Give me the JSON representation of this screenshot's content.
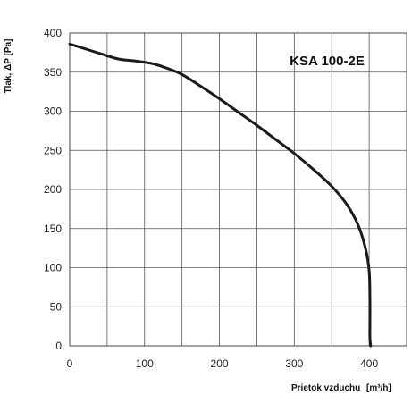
{
  "chart_data": {
    "type": "line",
    "title": "KSA 100-2E",
    "xlabel": "Prietok vzduchu",
    "xunit": "m³/h",
    "ylabel": "Tlak, ΔP [Pa]",
    "xlim": [
      0,
      450
    ],
    "ylim": [
      0,
      400
    ],
    "xticks": [
      0,
      100,
      200,
      300,
      400
    ],
    "yticks": [
      0,
      50,
      100,
      150,
      200,
      250,
      300,
      350,
      400
    ],
    "grid": true,
    "series": [
      {
        "x": [
          0,
          20,
          40,
          60,
          70,
          90,
          110,
          130,
          150,
          175,
          200,
          225,
          250,
          275,
          300,
          325,
          350,
          370,
          385,
          395,
          400,
          401,
          401,
          401,
          402
        ],
        "y": [
          386,
          380,
          374,
          368,
          366,
          364,
          361,
          355,
          347,
          332,
          316,
          299,
          282,
          264,
          246,
          226,
          204,
          181,
          155,
          125,
          96,
          60,
          30,
          10,
          0
        ]
      }
    ]
  }
}
